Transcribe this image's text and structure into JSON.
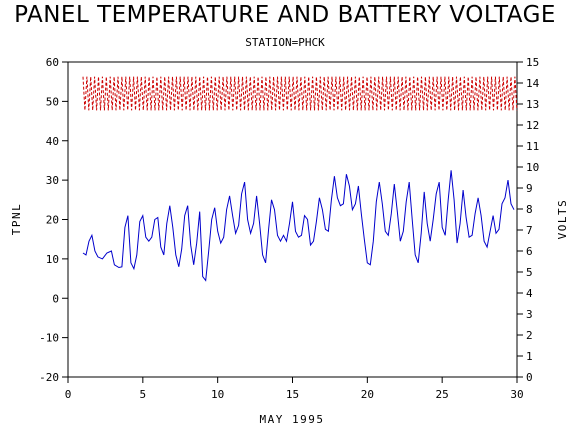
{
  "chart_data": {
    "type": "line",
    "title": "PANEL TEMPERATURE AND BATTERY VOLTAGE",
    "subtitle": "STATION=PHCK",
    "xlabel": "MAY 1995",
    "ylabel_left": "TPNL",
    "ylabel_right": "VOLTS",
    "xlim": [
      0,
      30
    ],
    "ylim_left": [
      -20,
      60
    ],
    "ylim_right": [
      0,
      15
    ],
    "x_ticks": [
      0,
      5,
      10,
      15,
      20,
      25,
      30
    ],
    "y_ticks_left": [
      -20,
      -10,
      0,
      10,
      20,
      30,
      40,
      50,
      60
    ],
    "y_ticks_right": [
      0,
      1,
      2,
      3,
      4,
      5,
      6,
      7,
      8,
      9,
      10,
      11,
      12,
      13,
      14,
      15
    ],
    "grid": false,
    "series": [
      {
        "name": "TPNL",
        "axis": "left",
        "color": "#0000cc",
        "style": "solid",
        "points": [
          [
            1.0,
            11.5
          ],
          [
            1.2,
            11.0
          ],
          [
            1.4,
            14.5
          ],
          [
            1.6,
            16.0
          ],
          [
            1.8,
            12.0
          ],
          [
            2.0,
            10.5
          ],
          [
            2.3,
            10.0
          ],
          [
            2.6,
            11.5
          ],
          [
            2.9,
            12.0
          ],
          [
            3.1,
            8.5
          ],
          [
            3.4,
            7.8
          ],
          [
            3.6,
            8.0
          ],
          [
            3.8,
            18.0
          ],
          [
            4.0,
            21.0
          ],
          [
            4.2,
            9.0
          ],
          [
            4.4,
            7.5
          ],
          [
            4.6,
            11.0
          ],
          [
            4.8,
            19.5
          ],
          [
            5.0,
            21.0
          ],
          [
            5.2,
            15.5
          ],
          [
            5.4,
            14.5
          ],
          [
            5.6,
            15.5
          ],
          [
            5.8,
            20.0
          ],
          [
            6.0,
            20.5
          ],
          [
            6.2,
            13.0
          ],
          [
            6.4,
            11.0
          ],
          [
            6.6,
            19.0
          ],
          [
            6.8,
            23.5
          ],
          [
            7.0,
            18.0
          ],
          [
            7.2,
            11.0
          ],
          [
            7.4,
            8.0
          ],
          [
            7.6,
            12.5
          ],
          [
            7.8,
            21.0
          ],
          [
            8.0,
            23.5
          ],
          [
            8.2,
            13.5
          ],
          [
            8.4,
            8.5
          ],
          [
            8.6,
            14.0
          ],
          [
            8.8,
            22.0
          ],
          [
            9.0,
            5.5
          ],
          [
            9.2,
            4.5
          ],
          [
            9.4,
            12.0
          ],
          [
            9.6,
            20.0
          ],
          [
            9.8,
            23.0
          ],
          [
            10.0,
            17.0
          ],
          [
            10.2,
            14.0
          ],
          [
            10.4,
            15.5
          ],
          [
            10.6,
            22.5
          ],
          [
            10.8,
            26.0
          ],
          [
            11.0,
            21.0
          ],
          [
            11.2,
            16.5
          ],
          [
            11.4,
            18.5
          ],
          [
            11.6,
            26.5
          ],
          [
            11.8,
            29.5
          ],
          [
            12.0,
            20.0
          ],
          [
            12.2,
            16.5
          ],
          [
            12.4,
            19.0
          ],
          [
            12.6,
            26.0
          ],
          [
            12.8,
            19.0
          ],
          [
            13.0,
            11.0
          ],
          [
            13.2,
            9.0
          ],
          [
            13.4,
            17.5
          ],
          [
            13.6,
            25.0
          ],
          [
            13.8,
            22.5
          ],
          [
            14.0,
            16.0
          ],
          [
            14.2,
            14.5
          ],
          [
            14.4,
            16.0
          ],
          [
            14.6,
            14.5
          ],
          [
            14.8,
            19.0
          ],
          [
            15.0,
            24.5
          ],
          [
            15.2,
            17.0
          ],
          [
            15.4,
            15.5
          ],
          [
            15.6,
            16.0
          ],
          [
            15.8,
            21.0
          ],
          [
            16.0,
            20.0
          ],
          [
            16.2,
            13.5
          ],
          [
            16.4,
            14.5
          ],
          [
            16.6,
            19.5
          ],
          [
            16.8,
            25.5
          ],
          [
            17.0,
            22.5
          ],
          [
            17.2,
            17.5
          ],
          [
            17.4,
            17.0
          ],
          [
            17.6,
            25.0
          ],
          [
            17.8,
            31.0
          ],
          [
            18.0,
            25.5
          ],
          [
            18.2,
            23.5
          ],
          [
            18.4,
            24.0
          ],
          [
            18.6,
            31.5
          ],
          [
            18.8,
            28.5
          ],
          [
            19.0,
            22.5
          ],
          [
            19.2,
            24.0
          ],
          [
            19.4,
            28.5
          ],
          [
            19.6,
            21.5
          ],
          [
            19.8,
            15.0
          ],
          [
            20.0,
            9.0
          ],
          [
            20.2,
            8.5
          ],
          [
            20.4,
            14.5
          ],
          [
            20.6,
            24.5
          ],
          [
            20.8,
            29.5
          ],
          [
            21.0,
            24.0
          ],
          [
            21.2,
            17.0
          ],
          [
            21.4,
            16.0
          ],
          [
            21.6,
            21.5
          ],
          [
            21.8,
            29.0
          ],
          [
            22.0,
            22.0
          ],
          [
            22.2,
            14.5
          ],
          [
            22.4,
            17.0
          ],
          [
            22.6,
            24.5
          ],
          [
            22.8,
            29.5
          ],
          [
            23.0,
            20.0
          ],
          [
            23.2,
            11.0
          ],
          [
            23.4,
            9.0
          ],
          [
            23.6,
            16.5
          ],
          [
            23.8,
            27.0
          ],
          [
            24.0,
            19.0
          ],
          [
            24.2,
            14.5
          ],
          [
            24.4,
            20.0
          ],
          [
            24.6,
            26.5
          ],
          [
            24.8,
            29.5
          ],
          [
            25.0,
            18.0
          ],
          [
            25.2,
            16.0
          ],
          [
            25.4,
            25.0
          ],
          [
            25.6,
            32.5
          ],
          [
            25.8,
            25.0
          ],
          [
            26.0,
            14.0
          ],
          [
            26.2,
            19.0
          ],
          [
            26.4,
            27.5
          ],
          [
            26.6,
            20.5
          ],
          [
            26.8,
            15.5
          ],
          [
            27.0,
            16.0
          ],
          [
            27.2,
            21.5
          ],
          [
            27.4,
            25.5
          ],
          [
            27.6,
            21.0
          ],
          [
            27.8,
            14.5
          ],
          [
            28.0,
            13.0
          ],
          [
            28.2,
            17.0
          ],
          [
            28.4,
            21.0
          ],
          [
            28.6,
            16.5
          ],
          [
            28.8,
            17.5
          ],
          [
            29.0,
            24.0
          ],
          [
            29.2,
            25.5
          ],
          [
            29.4,
            30.0
          ],
          [
            29.6,
            24.0
          ],
          [
            29.8,
            22.5
          ]
        ]
      },
      {
        "name": "VOLTS",
        "axis": "right",
        "color": "#cc0000",
        "style": "dashed",
        "low": 12.7,
        "high": 14.3,
        "x_start": 1.0,
        "x_end": 30.0,
        "cycle_days": 0.26
      }
    ]
  }
}
